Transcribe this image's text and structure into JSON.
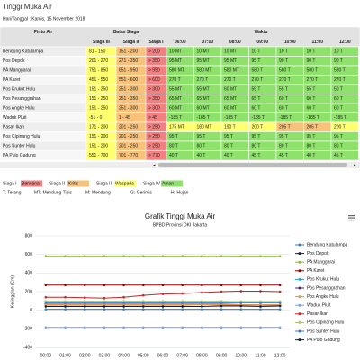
{
  "header": {
    "title": "Tinggi Muka Air",
    "date": "Hari/Tanggal : Kamis, 15 November 2018"
  },
  "table": {
    "columns": {
      "gate": "Pintu Air",
      "limits": "Batas Siaga",
      "time": "Waktu"
    },
    "limit_headers": [
      "Siaga III",
      "Siaga II",
      "Siaga I"
    ],
    "times": [
      "06:00",
      "07:00",
      "08:00",
      "09:00",
      "10:00",
      "11:00",
      "12:00"
    ],
    "rows": [
      {
        "name": "Bendung Katulampa",
        "limits": [
          "81 - 150",
          "151 - 200",
          "> 200"
        ],
        "readings": [
          "10 MT",
          "10 MT",
          "10 MT",
          "10 T",
          "10 T",
          "10 T",
          "10 T"
        ]
      },
      {
        "name": "Pos Depok",
        "limits": [
          "201 - 270",
          "271 - 350",
          "> 350"
        ],
        "readings": [
          "95 MT",
          "95 MT",
          "95 MT",
          "95 T",
          "90 T",
          "90 T",
          "90 T"
        ]
      },
      {
        "name": "PA Manggarai",
        "limits": [
          "751 - 850",
          "851 - 950",
          "> 950"
        ],
        "readings": [
          "580 MT",
          "580 MT",
          "580 MT",
          "580 T",
          "580 T",
          "580 T",
          "580 T"
        ]
      },
      {
        "name": "PA Karet",
        "limits": [
          "451 - 550",
          "551 - 600",
          "> 600"
        ],
        "readings": [
          "270 T",
          "270 T",
          "270 T",
          "270 T",
          "270 T",
          "270 T",
          "270 T"
        ]
      },
      {
        "name": "Pos Krukut Hulu",
        "limits": [
          "151 - 250",
          "251 - 300",
          "> 300"
        ],
        "readings": [
          "55 MT",
          "55 MT",
          "60 MT",
          "55 T",
          "55 T",
          "55 T",
          "50 T"
        ]
      },
      {
        "name": "Pos Pesanggrahan",
        "limits": [
          "151 - 250",
          "251 - 350",
          "> 350"
        ],
        "readings": [
          "65 MT",
          "65 MT",
          "65 MT",
          "65 T",
          "60 T",
          "60 T",
          "60 T"
        ]
      },
      {
        "name": "Pos Angke Hulu",
        "limits": [
          "151 - 250",
          "251 - 300",
          "> 300"
        ],
        "readings": [
          "60 MT",
          "60 MT",
          "60 MT",
          "60 T",
          "60 T",
          "60 T",
          "60 T"
        ]
      },
      {
        "name": "Waduk Pluit",
        "limits": [
          "-51 - 0",
          "1 - 45",
          "> 45"
        ],
        "readings": [
          "-185 T",
          "-185 T",
          "-185 T",
          "-185 T",
          "-185 T",
          "-185 T",
          "-185 T"
        ]
      },
      {
        "name": "Pasar Ikan",
        "limits": [
          "171 - 200",
          "201 - 250",
          "> 250"
        ],
        "readings": [
          "175 MT",
          "180 MT",
          "190 T",
          "200 T",
          "205 T",
          "205 T",
          "200 T"
        ]
      },
      {
        "name": "Pos Cipinang Hulu",
        "limits": [
          "151 - 200",
          "201 - 250",
          "> 250"
        ],
        "readings": [
          "95 T",
          "95 T",
          "95 T",
          "95 T",
          "95 T",
          "95 T",
          "95 T"
        ]
      },
      {
        "name": "Pos Sunter Hulu",
        "limits": [
          "151 - 200",
          "201 - 250",
          "> 250"
        ],
        "readings": [
          "80 T",
          "80 T",
          "80 T",
          "80 T",
          "80 T",
          "80 T",
          "80 T"
        ]
      },
      {
        "name": "PA Pulo Gadung",
        "limits": [
          "551 - 700",
          "701 - 770",
          "> 770"
        ],
        "readings": [
          "40 T",
          "40 T",
          "40 T",
          "45 T",
          "45 T",
          "40 T",
          "45 T"
        ]
      }
    ]
  },
  "legend": {
    "levels": [
      {
        "level": "Siaga I",
        "desc": "Bencana",
        "color": "#f28080"
      },
      {
        "level": "Siaga II",
        "desc": "Kritis",
        "color": "#f9c27a"
      },
      {
        "level": "Siaga III",
        "desc": "Waspada",
        "color": "#ffff70"
      },
      {
        "level": "Siaga IV",
        "desc": "Aman",
        "color": "#8ee26b"
      }
    ],
    "weather": [
      "T: Terang",
      "MT: Mendung Tipis",
      "M: Mendung",
      "G: Gerimis",
      "H: Hujan"
    ]
  },
  "chart_data": {
    "type": "line",
    "title": "Grafik Tinggi Muka Air",
    "subtitle": "BPBD Provinsi DKI Jakarta",
    "y_label": "Ketinggian (Cm)",
    "categories": [
      "00:00",
      "01:00",
      "02:00",
      "03:00",
      "04:00",
      "05:00",
      "06:00",
      "07:00",
      "08:00",
      "09:00",
      "10:00",
      "11:00",
      "12:00"
    ],
    "ylim": [
      -400,
      800
    ],
    "yticks": [
      -400,
      -200,
      0,
      200,
      400,
      600,
      800
    ],
    "grid": true,
    "series": [
      {
        "name": "Bendung Katulampa",
        "color": "#2f7ed8",
        "values": [
          10,
          10,
          10,
          10,
          10,
          10,
          10,
          10,
          10,
          10,
          10,
          10,
          10
        ]
      },
      {
        "name": "Pos Depok",
        "color": "#0d233a",
        "values": [
          95,
          95,
          95,
          95,
          95,
          95,
          95,
          95,
          95,
          95,
          90,
          90,
          90
        ]
      },
      {
        "name": "PA Manggarai",
        "color": "#8bbc21",
        "values": [
          580,
          580,
          580,
          580,
          580,
          580,
          580,
          580,
          580,
          580,
          580,
          580,
          580
        ]
      },
      {
        "name": "PA Karet",
        "color": "#910000",
        "values": [
          270,
          270,
          270,
          270,
          270,
          270,
          270,
          270,
          270,
          270,
          270,
          270,
          270
        ]
      },
      {
        "name": "Pos Krukut Hulu",
        "color": "#1aadce",
        "values": [
          55,
          55,
          55,
          55,
          55,
          55,
          55,
          55,
          60,
          55,
          55,
          55,
          50
        ]
      },
      {
        "name": "Pos Pesanggrahan",
        "color": "#492970",
        "values": [
          65,
          65,
          65,
          65,
          65,
          65,
          65,
          65,
          65,
          65,
          60,
          60,
          60
        ]
      },
      {
        "name": "Pos Angke Hulu",
        "color": "#f28f43",
        "values": [
          60,
          60,
          60,
          60,
          60,
          60,
          60,
          60,
          60,
          60,
          60,
          60,
          60
        ]
      },
      {
        "name": "Waduk Pluit",
        "color": "#77a1e5",
        "values": [
          -185,
          -185,
          -185,
          -185,
          -185,
          -185,
          -185,
          -185,
          -185,
          -185,
          -185,
          -185,
          -185
        ]
      },
      {
        "name": "Pasar Ikan",
        "color": "#c42525",
        "values": [
          140,
          140,
          135,
          130,
          140,
          160,
          175,
          180,
          190,
          200,
          205,
          205,
          200
        ]
      },
      {
        "name": "Pos Cipinang Hulu",
        "color": "#a6c96a",
        "values": [
          95,
          95,
          95,
          95,
          95,
          95,
          95,
          95,
          95,
          95,
          95,
          95,
          95
        ]
      },
      {
        "name": "Pos Sunter Hulu",
        "color": "#2f7ed8",
        "values": [
          80,
          80,
          80,
          80,
          80,
          80,
          80,
          80,
          80,
          80,
          80,
          80,
          80
        ]
      },
      {
        "name": "PA Pulo Gadung",
        "color": "#0d233a",
        "values": [
          40,
          40,
          40,
          40,
          40,
          40,
          40,
          40,
          40,
          45,
          45,
          40,
          45
        ]
      }
    ]
  }
}
